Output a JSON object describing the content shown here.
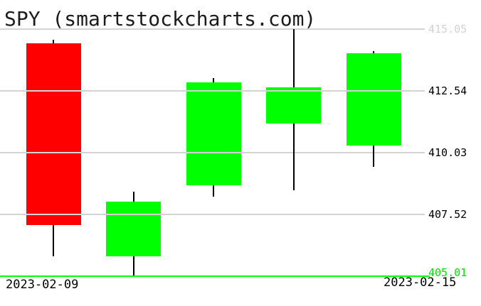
{
  "header": {
    "title": "SPY (smartstockcharts.com)"
  },
  "chart_data": {
    "type": "candlestick",
    "title": "SPY (smartstockcharts.com)",
    "symbol": "SPY",
    "ylim": [
      405.01,
      415.05
    ],
    "grid": true,
    "grid_color": "#d3d3d3",
    "up_color": "#00ff00",
    "down_color": "#ff0000",
    "wick_color": "#000000",
    "axis_line_color": "#00ff00",
    "y_ticks": [
      {
        "value": 415.05,
        "label": "415.05",
        "color": "#d3d3d3"
      },
      {
        "value": 412.54,
        "label": "412.54",
        "color": "#000000"
      },
      {
        "value": 410.03,
        "label": "410.03",
        "color": "#000000"
      },
      {
        "value": 407.52,
        "label": "407.52",
        "color": "#000000"
      },
      {
        "value": 405.01,
        "label": "405.01",
        "color": "#00e000"
      }
    ],
    "x_tick_labels": [
      {
        "label": "2023-02-09",
        "position": "left"
      },
      {
        "label": "2023-02-15",
        "position": "right"
      }
    ],
    "candles": [
      {
        "date": "2023-02-09",
        "open": 414.46,
        "high": 414.61,
        "low": 405.82,
        "close": 407.1,
        "direction": "down"
      },
      {
        "date": "",
        "open": 405.82,
        "high": 408.44,
        "low": 405.01,
        "close": 408.03,
        "direction": "up"
      },
      {
        "date": "",
        "open": 408.7,
        "high": 413.06,
        "low": 408.24,
        "close": 412.89,
        "direction": "up"
      },
      {
        "date": "",
        "open": 411.22,
        "high": 415.05,
        "low": 408.5,
        "close": 412.68,
        "direction": "up"
      },
      {
        "date": "2023-02-15",
        "open": 410.32,
        "high": 414.15,
        "low": 409.45,
        "close": 414.07,
        "direction": "up"
      }
    ]
  }
}
